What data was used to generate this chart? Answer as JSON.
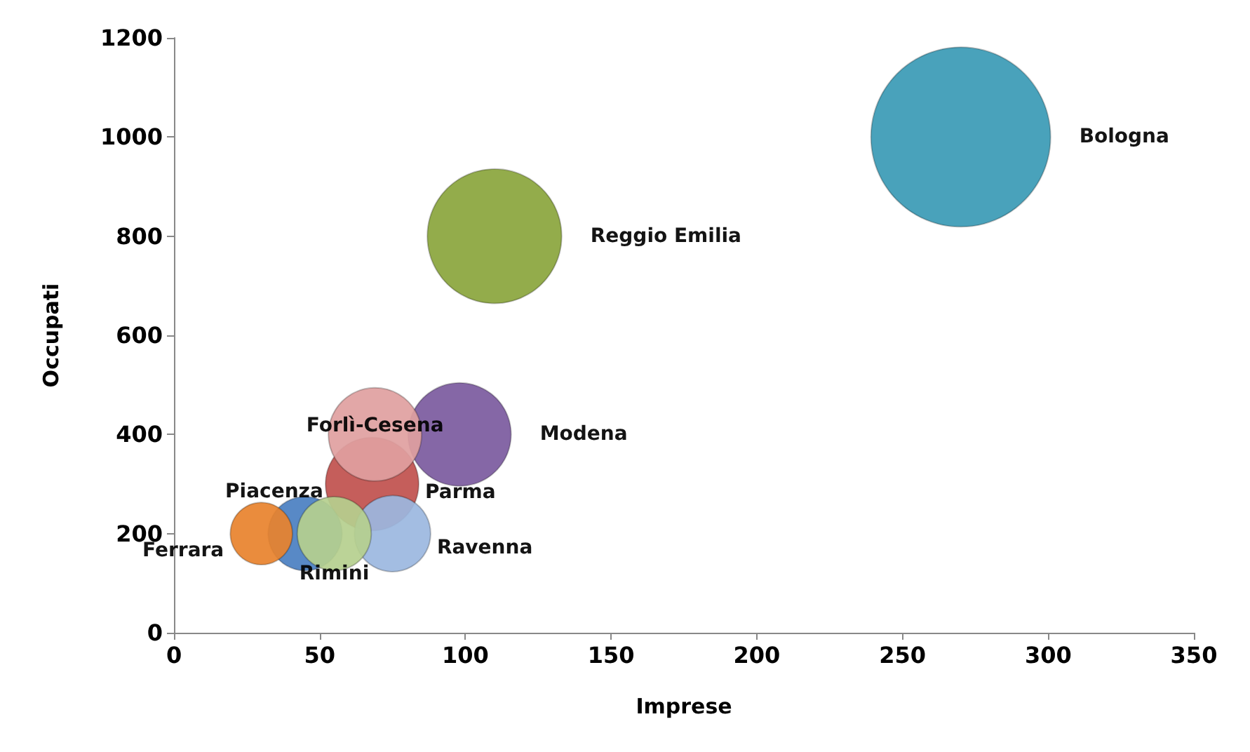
{
  "chart_data": {
    "type": "bubble",
    "xlabel": "Imprese",
    "ylabel": "Occupati",
    "xlim": [
      0,
      350
    ],
    "xticks": [
      0,
      50,
      100,
      150,
      200,
      250,
      300,
      350
    ],
    "ylim": [
      0,
      1200
    ],
    "yticks": [
      0,
      200,
      400,
      600,
      800,
      1000,
      1200
    ],
    "grid": false,
    "legend": false,
    "series": [
      {
        "name": "Bologna",
        "color": "#3a9ab5",
        "x": [
          270
        ],
        "values": [
          1000
        ],
        "sizes": [
          1
        ]
      },
      {
        "name": "Reggio Emilia",
        "color": "#8aa53c",
        "x": [
          110
        ],
        "values": [
          800
        ],
        "sizes": [
          0.56
        ]
      },
      {
        "name": "Modena",
        "color": "#7b5a9e",
        "x": [
          98
        ],
        "values": [
          400
        ],
        "sizes": [
          0.33
        ]
      },
      {
        "name": "Parma",
        "color": "#c0504d",
        "x": [
          68
        ],
        "values": [
          300
        ],
        "sizes": [
          0.27
        ]
      },
      {
        "name": "Forlì-Cesena",
        "color": "#e0a0a0",
        "x": [
          69
        ],
        "values": [
          400
        ],
        "sizes": [
          0.27
        ]
      },
      {
        "name": "Piacenza",
        "color": "#4a7fc1",
        "x": [
          45
        ],
        "values": [
          200
        ],
        "sizes": [
          0.17
        ]
      },
      {
        "name": "Ravenna",
        "color": "#9bb7df",
        "x": [
          75
        ],
        "values": [
          200
        ],
        "sizes": [
          0.18
        ]
      },
      {
        "name": "Ferrara",
        "color": "#e8822c",
        "x": [
          30
        ],
        "values": [
          200
        ],
        "sizes": [
          0.12
        ]
      },
      {
        "name": "Rimini",
        "color": "#b5cf8e",
        "x": [
          55
        ],
        "values": [
          200
        ],
        "sizes": [
          0.17
        ]
      }
    ]
  }
}
